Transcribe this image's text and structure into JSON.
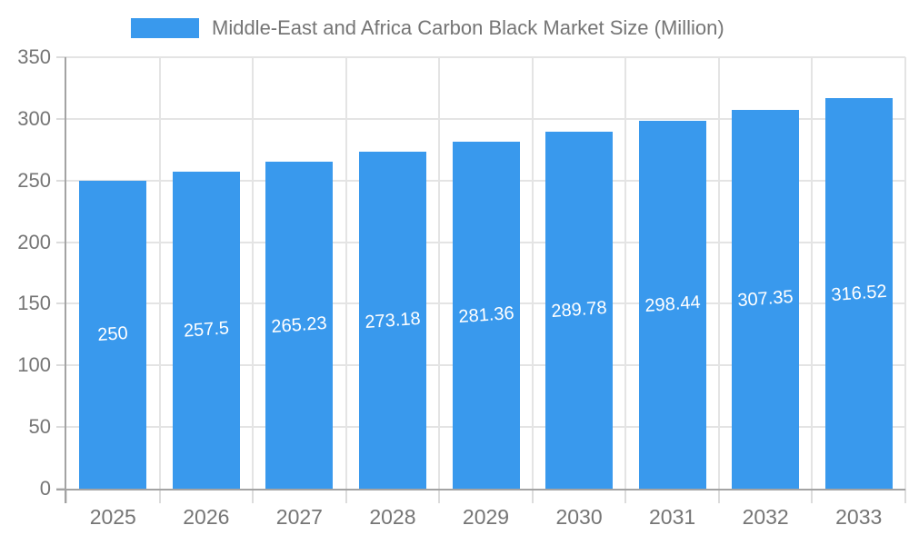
{
  "legend": {
    "label": "Middle-East and Africa Carbon Black Market Size (Million)"
  },
  "chart_data": {
    "type": "bar",
    "title": "Middle-East and Africa Carbon Black Market Size (Million)",
    "categories": [
      "2025",
      "2026",
      "2027",
      "2028",
      "2029",
      "2030",
      "2031",
      "2032",
      "2033"
    ],
    "values": [
      250,
      257.5,
      265.23,
      273.18,
      281.36,
      289.78,
      298.44,
      307.35,
      316.52
    ],
    "value_labels": [
      "250",
      "257.5",
      "265.23",
      "273.18",
      "281.36",
      "289.78",
      "298.44",
      "307.35",
      "316.52"
    ],
    "series_name": "Middle-East and Africa Carbon Black Market Size (Million)",
    "xlabel": "",
    "ylabel": "",
    "ylim": [
      0,
      350
    ],
    "yticks": [
      0,
      50,
      100,
      150,
      200,
      250,
      300,
      350
    ],
    "grid": true,
    "legend_position": "top",
    "colors": {
      "bar": "#3999ED",
      "bar_label": "#FFFFFF",
      "axis_line": "#A3A3A3",
      "gridline": "#E4E4E4",
      "tick": "#DCDCDC",
      "text": "#757575",
      "background": "#FFFFFF"
    }
  }
}
